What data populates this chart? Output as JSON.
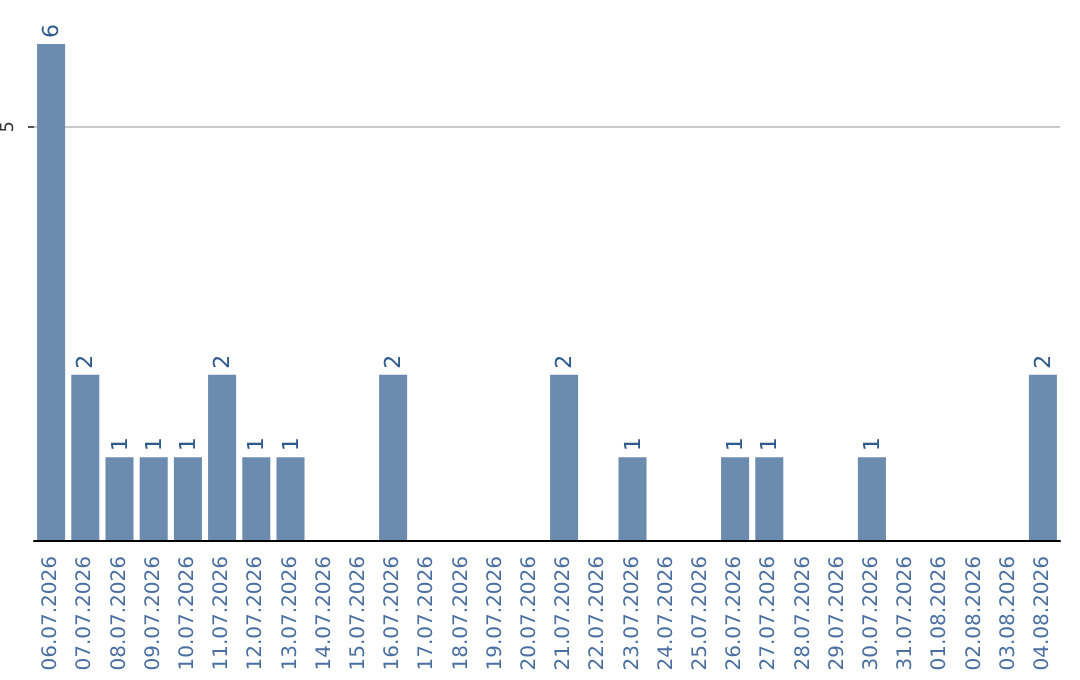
{
  "chart_data": {
    "type": "bar",
    "categories": [
      "06.07.2026",
      "07.07.2026",
      "08.07.2026",
      "09.07.2026",
      "10.07.2026",
      "11.07.2026",
      "12.07.2026",
      "13.07.2026",
      "14.07.2026",
      "15.07.2026",
      "16.07.2026",
      "17.07.2026",
      "18.07.2026",
      "19.07.2026",
      "20.07.2026",
      "21.07.2026",
      "22.07.2026",
      "23.07.2026",
      "24.07.2026",
      "25.07.2026",
      "26.07.2026",
      "27.07.2026",
      "28.07.2026",
      "29.07.2026",
      "30.07.2026",
      "31.07.2026",
      "01.08.2026",
      "02.08.2026",
      "03.08.2026",
      "04.08.2026"
    ],
    "values": [
      6,
      2,
      1,
      1,
      1,
      2,
      1,
      1,
      0,
      0,
      2,
      0,
      0,
      0,
      0,
      2,
      0,
      1,
      0,
      0,
      1,
      1,
      0,
      0,
      1,
      0,
      0,
      0,
      0,
      2
    ],
    "value_labels": [
      "6",
      "2",
      "1",
      "1",
      "1",
      "2",
      "1",
      "1",
      null,
      null,
      "2",
      null,
      null,
      null,
      null,
      "2",
      null,
      "1",
      null,
      null,
      "1",
      "1",
      null,
      null,
      "1",
      null,
      null,
      null,
      null,
      "2"
    ],
    "color": "#6b8cae",
    "ylim": [
      0,
      6
    ],
    "yticks": [
      5
    ],
    "grid": "y"
  }
}
